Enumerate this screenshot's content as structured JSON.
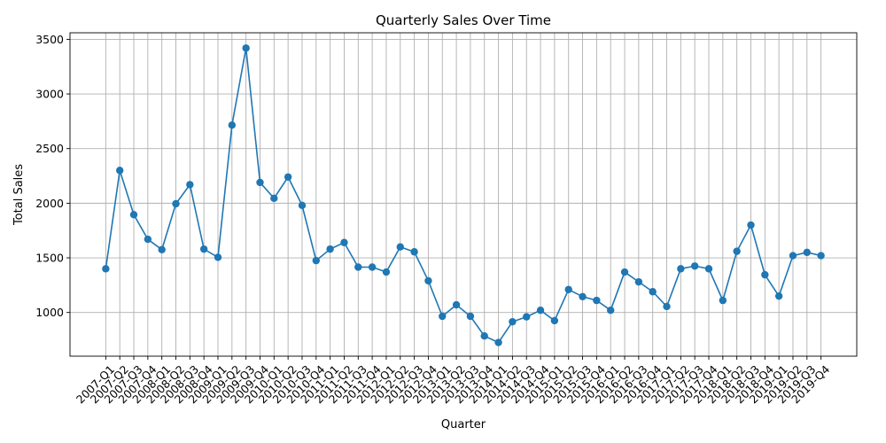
{
  "chart_data": {
    "type": "line",
    "title": "Quarterly Sales Over Time",
    "xlabel": "Quarter",
    "ylabel": "Total Sales",
    "ylim": [
      600,
      3560
    ],
    "yticks": [
      1000,
      1500,
      2000,
      2500,
      3000,
      3500
    ],
    "grid": true,
    "series_color": "#1f77b4",
    "categories": [
      "2007-Q1",
      "2007-Q2",
      "2007-Q3",
      "2007-Q4",
      "2008-Q1",
      "2008-Q2",
      "2008-Q3",
      "2008-Q4",
      "2009-Q1",
      "2009-Q2",
      "2009-Q3",
      "2009-Q4",
      "2010-Q1",
      "2010-Q2",
      "2010-Q3",
      "2010-Q4",
      "2011-Q1",
      "2011-Q2",
      "2011-Q3",
      "2011-Q4",
      "2012-Q1",
      "2012-Q2",
      "2012-Q3",
      "2012-Q4",
      "2013-Q1",
      "2013-Q2",
      "2013-Q3",
      "2013-Q4",
      "2014-Q1",
      "2014-Q2",
      "2014-Q3",
      "2014-Q4",
      "2015-Q1",
      "2015-Q2",
      "2015-Q3",
      "2015-Q4",
      "2016-Q1",
      "2016-Q2",
      "2016-Q3",
      "2016-Q4",
      "2017-Q1",
      "2017-Q2",
      "2017-Q3",
      "2017-Q4",
      "2018-Q1",
      "2018-Q2",
      "2018-Q3",
      "2018-Q4",
      "2019-Q1",
      "2019-Q2",
      "2019-Q3",
      "2019-Q4"
    ],
    "values": [
      1400,
      2300,
      1895,
      1670,
      1575,
      1995,
      2170,
      1580,
      1505,
      2715,
      3420,
      2190,
      2045,
      2240,
      1980,
      1475,
      1580,
      1640,
      1415,
      1415,
      1370,
      1600,
      1555,
      1290,
      965,
      1070,
      965,
      785,
      725,
      915,
      960,
      1020,
      925,
      1210,
      1145,
      1110,
      1020,
      1370,
      1280,
      1190,
      1055,
      1400,
      1425,
      1400,
      1110,
      1560,
      1800,
      1345,
      1150,
      1520,
      1550,
      1520
    ]
  }
}
